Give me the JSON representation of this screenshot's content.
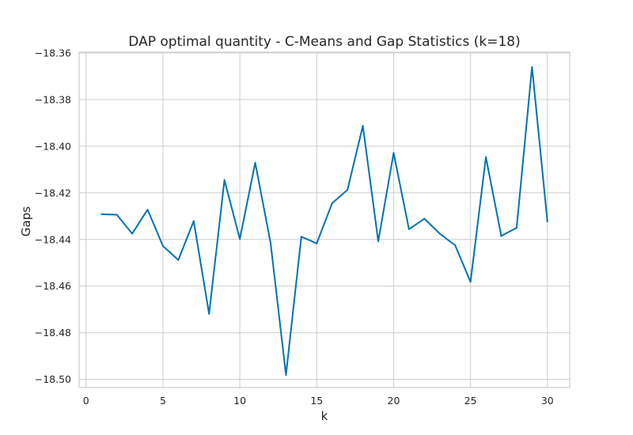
{
  "chart_data": {
    "type": "line",
    "title": "DAP optimal quantity - C-Means and Gap Statistics (k=18)",
    "xlabel": "k",
    "ylabel": "Gaps",
    "xlim": [
      -0.45,
      31.45
    ],
    "ylim": [
      -18.5035,
      -18.3597
    ],
    "xticks": [
      0,
      5,
      10,
      15,
      20,
      25,
      30
    ],
    "xtick_labels": [
      "0",
      "5",
      "10",
      "15",
      "20",
      "25",
      "30"
    ],
    "yticks": [
      -18.5,
      -18.48,
      -18.46,
      -18.44,
      -18.42,
      -18.4,
      -18.38,
      -18.36
    ],
    "ytick_labels": [
      "−18.50",
      "−18.48",
      "−18.46",
      "−18.44",
      "−18.42",
      "−18.40",
      "−18.38",
      "−18.36"
    ],
    "grid": true,
    "colors": {
      "line": "#0072b2",
      "grid": "#cccccc",
      "spine": "#cccccc",
      "text": "#262626"
    },
    "series": [
      {
        "x": [
          1,
          2,
          3,
          4,
          5,
          6,
          7,
          8,
          9,
          10,
          11,
          12,
          13,
          14,
          15,
          16,
          17,
          18,
          19,
          20,
          21,
          22,
          23,
          24,
          25,
          26,
          27,
          28,
          29,
          30
        ],
        "values": [
          -18.4292,
          -18.4294,
          -18.4375,
          -18.4272,
          -18.4428,
          -18.4488,
          -18.4321,
          -18.4719,
          -18.4145,
          -18.4398,
          -18.4071,
          -18.4415,
          -18.4981,
          -18.4388,
          -18.4417,
          -18.4245,
          -18.4187,
          -18.3913,
          -18.4408,
          -18.4029,
          -18.4356,
          -18.4311,
          -18.4375,
          -18.4425,
          -18.4582,
          -18.4047,
          -18.4385,
          -18.435,
          -18.366,
          -18.4323
        ]
      }
    ]
  }
}
